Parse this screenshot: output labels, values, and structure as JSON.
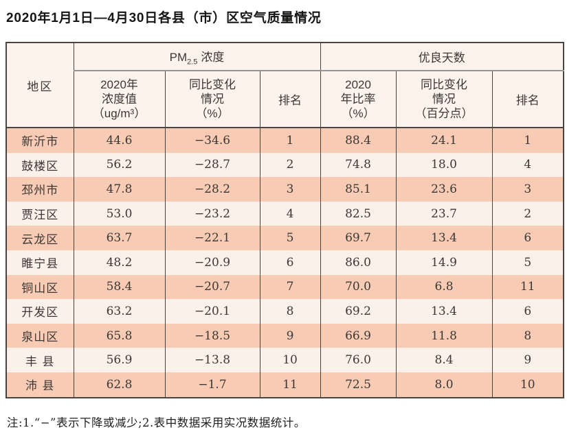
{
  "title": "2020年1月1日—4月30日各县（市）区空气质量情况",
  "table": {
    "header": {
      "region": "地区",
      "pm25": {
        "base": "PM",
        "sub": "2.5",
        "label": "浓度"
      },
      "good_days": "优良天数",
      "sub_columns": {
        "pm_value": [
          "2020年",
          "浓度值",
          "（ug/m³）"
        ],
        "pm_change": [
          "同比变化",
          "情况",
          "（%）"
        ],
        "pm_rank": "排名",
        "rate": [
          "2020",
          "年比率",
          "（%）"
        ],
        "rate_change": [
          "同比变化",
          "情况",
          "（百分点）"
        ],
        "rate_rank": "排名"
      }
    },
    "rows": [
      {
        "region": "新沂市",
        "pm_value": "44.6",
        "pm_change": "−34.6",
        "pm_rank": "1",
        "rate": "88.4",
        "rate_change": "24.1",
        "rate_rank": "1"
      },
      {
        "region": "鼓楼区",
        "pm_value": "56.2",
        "pm_change": "−28.7",
        "pm_rank": "2",
        "rate": "74.8",
        "rate_change": "18.0",
        "rate_rank": "4"
      },
      {
        "region": "邳州市",
        "pm_value": "47.8",
        "pm_change": "−28.2",
        "pm_rank": "3",
        "rate": "85.1",
        "rate_change": "23.6",
        "rate_rank": "3"
      },
      {
        "region": "贾汪区",
        "pm_value": "53.0",
        "pm_change": "−23.2",
        "pm_rank": "4",
        "rate": "82.5",
        "rate_change": "23.7",
        "rate_rank": "2"
      },
      {
        "region": "云龙区",
        "pm_value": "63.7",
        "pm_change": "−22.1",
        "pm_rank": "5",
        "rate": "69.7",
        "rate_change": "13.4",
        "rate_rank": "6"
      },
      {
        "region": "睢宁县",
        "pm_value": "48.2",
        "pm_change": "−20.9",
        "pm_rank": "6",
        "rate": "86.0",
        "rate_change": "14.9",
        "rate_rank": "5"
      },
      {
        "region": "铜山区",
        "pm_value": "58.4",
        "pm_change": "−20.7",
        "pm_rank": "7",
        "rate": "70.0",
        "rate_change": "6.8",
        "rate_rank": "11"
      },
      {
        "region": "开发区",
        "pm_value": "63.2",
        "pm_change": "−20.1",
        "pm_rank": "8",
        "rate": "69.2",
        "rate_change": "13.4",
        "rate_rank": "6"
      },
      {
        "region": "泉山区",
        "pm_value": "65.8",
        "pm_change": "−18.5",
        "pm_rank": "9",
        "rate": "66.9",
        "rate_change": "11.8",
        "rate_rank": "8"
      },
      {
        "region": "丰 县",
        "pm_value": "56.9",
        "pm_change": "−13.8",
        "pm_rank": "10",
        "rate": "76.0",
        "rate_change": "8.4",
        "rate_rank": "9"
      },
      {
        "region": "沛 县",
        "pm_value": "62.8",
        "pm_change": "−1.7",
        "pm_rank": "11",
        "rate": "72.5",
        "rate_change": "8.0",
        "rate_rank": "10"
      }
    ]
  },
  "note": "注:1.“−”表示下降或减少;2.表中数据采用实况数据统计。",
  "colors": {
    "row_odd": "#f8ccb4",
    "row_even": "#fcf1ea",
    "header_bg": "#fcf3ec",
    "border": "#474340",
    "header_underline": "#979390"
  }
}
